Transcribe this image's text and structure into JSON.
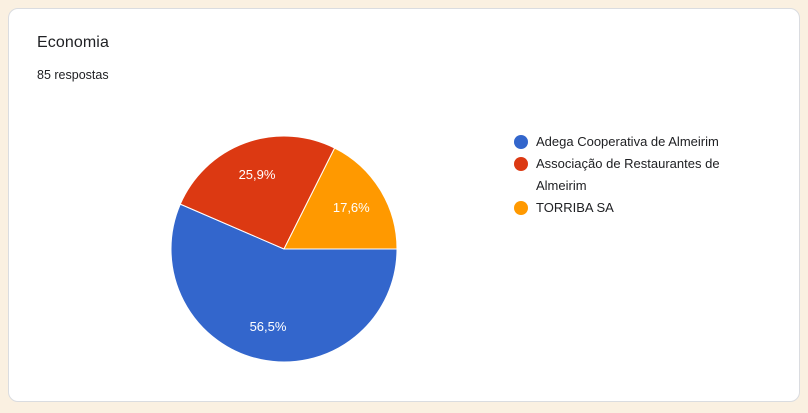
{
  "card": {
    "title": "Economia",
    "subtitle": "85 respostas"
  },
  "chart_data": {
    "type": "pie",
    "title": "Economia",
    "subtitle": "85 respostas",
    "total_responses_text": "85 respostas",
    "categories": [
      "Adega Cooperativa de Almeirim",
      "Associação de Restaurantes de Almeirim",
      "TORRIBA SA"
    ],
    "values": [
      56.5,
      25.9,
      17.6
    ],
    "unit": "percent",
    "slice_labels": [
      "56,5%",
      "25,9%",
      "17,6%"
    ],
    "colors": [
      "#3366cc",
      "#dc3912",
      "#ff9900"
    ],
    "start_angle_deg": 90,
    "direction": "clockwise",
    "legend_position": "right",
    "slice_label_color": "#ffffff",
    "slice_stroke_color": "#ffffff"
  },
  "legend": {
    "items": [
      {
        "label": "Adega Cooperativa de Almeirim",
        "color": "#3366cc"
      },
      {
        "label": "Associação de Restaurantes de Almeirim",
        "color": "#dc3912"
      },
      {
        "label": "TORRIBA SA",
        "color": "#ff9900"
      }
    ]
  },
  "theme": {
    "page_background": "#faf0e1",
    "card_background": "#ffffff",
    "card_border": "#dadce0",
    "text_primary": "#202124"
  }
}
